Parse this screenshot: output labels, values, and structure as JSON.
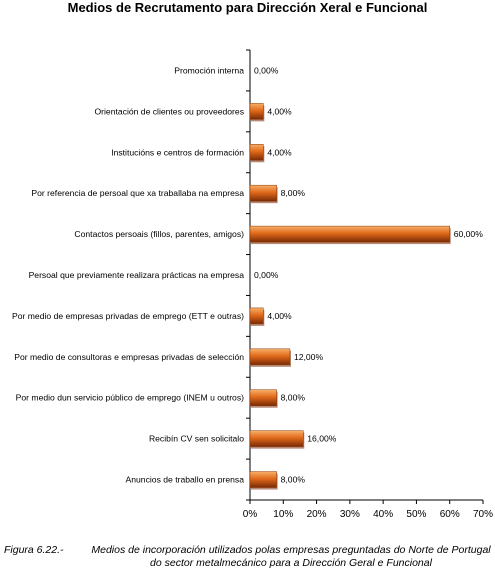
{
  "chart_data": {
    "type": "bar",
    "orientation": "horizontal",
    "title": "Medios de Recrutamento para Dirección Xeral e Funcional",
    "categories": [
      "Promoción interna",
      "Orientación de clientes ou proveedores",
      "Institucións e centros de formación",
      "Por referencia de persoal que xa traballaba na empresa",
      "Contactos persoais (fillos, parentes, amigos)",
      "Persoal que previamente realizara prácticas na empresa",
      "Por medio de empresas privadas de emprego (ETT e outras)",
      "Por medio de consultoras e empresas privadas de selección",
      "Por medio dun servicio público de emprego (INEM u outros)",
      "Recibín CV sen solicitalo",
      "Anuncios de traballo en prensa"
    ],
    "values": [
      0,
      4,
      4,
      8,
      60,
      0,
      4,
      12,
      8,
      16,
      8
    ],
    "value_labels": [
      "0,00%",
      "4,00%",
      "4,00%",
      "8,00%",
      "60,00%",
      "0,00%",
      "4,00%",
      "12,00%",
      "8,00%",
      "16,00%",
      "8,00%"
    ],
    "xlim": [
      0,
      70
    ],
    "xticks": [
      "0%",
      "10%",
      "20%",
      "30%",
      "40%",
      "50%",
      "60%",
      "70%"
    ],
    "bar_color": "#e06a1a",
    "bar_shadow_color": "#7a2a05"
  },
  "caption": {
    "figure_label": "Figura 6.22.-",
    "text": "Medios de incorporación utilizados polas empresas preguntadas do Norte de Portugal do sector metalmecánico para a Dirección Geral e Funcional"
  }
}
